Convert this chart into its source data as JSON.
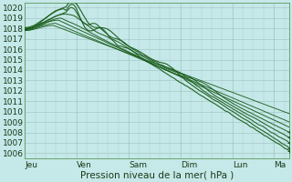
{
  "bg_color": "#c5e8e8",
  "grid_color_major": "#9dbfbf",
  "grid_color_minor": "#b8d8d8",
  "line_color": "#1a5c1a",
  "ylim": [
    1005.5,
    1020.5
  ],
  "yticks": [
    1006,
    1007,
    1008,
    1009,
    1010,
    1011,
    1012,
    1013,
    1014,
    1015,
    1016,
    1017,
    1018,
    1019,
    1020
  ],
  "xtick_labels": [
    "Jeu",
    "Ven",
    "Sam",
    "Dim",
    "Lun",
    "Ma"
  ],
  "xtick_positions": [
    0,
    1,
    2,
    3,
    4,
    4.8
  ],
  "xlim": [
    0,
    5.1
  ],
  "xlabel": "Pression niveau de la mer( hPa )",
  "tick_fontsize": 6.5,
  "xlabel_fontsize": 7.5
}
